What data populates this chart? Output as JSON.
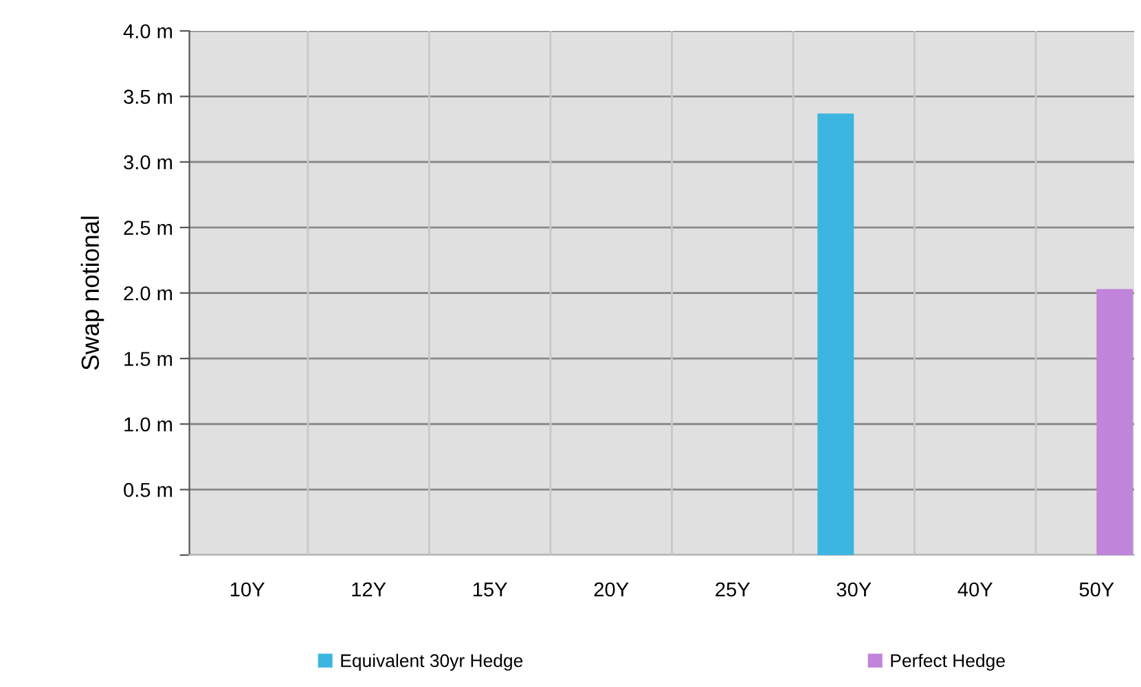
{
  "chart_data": {
    "type": "bar",
    "ylabel": "Swap notional",
    "categories": [
      "10Y",
      "12Y",
      "15Y",
      "20Y",
      "25Y",
      "30Y",
      "40Y",
      "50Y"
    ],
    "series": [
      {
        "name": "Equivalent 30yr Hedge",
        "color": "#3cb6e0",
        "values": [
          null,
          null,
          null,
          null,
          null,
          3.37,
          null,
          null
        ]
      },
      {
        "name": "Perfect Hedge",
        "color": "#c084da",
        "values": [
          null,
          null,
          null,
          null,
          null,
          null,
          null,
          2.03
        ]
      }
    ],
    "ylim": [
      0,
      4.0
    ],
    "yticks": [
      {
        "value": 0,
        "label": null
      },
      {
        "value": 0.5,
        "label": "0.5 m"
      },
      {
        "value": 1.0,
        "label": "1.0 m"
      },
      {
        "value": 1.5,
        "label": "1.5 m"
      },
      {
        "value": 2.0,
        "label": "2.0 m"
      },
      {
        "value": 2.5,
        "label": "2.5 m"
      },
      {
        "value": 3.0,
        "label": "3.0 m"
      },
      {
        "value": 3.5,
        "label": "3.5 m"
      },
      {
        "value": 4.0,
        "label": "4.0 m"
      }
    ],
    "grid": true,
    "legend": "bottom"
  }
}
